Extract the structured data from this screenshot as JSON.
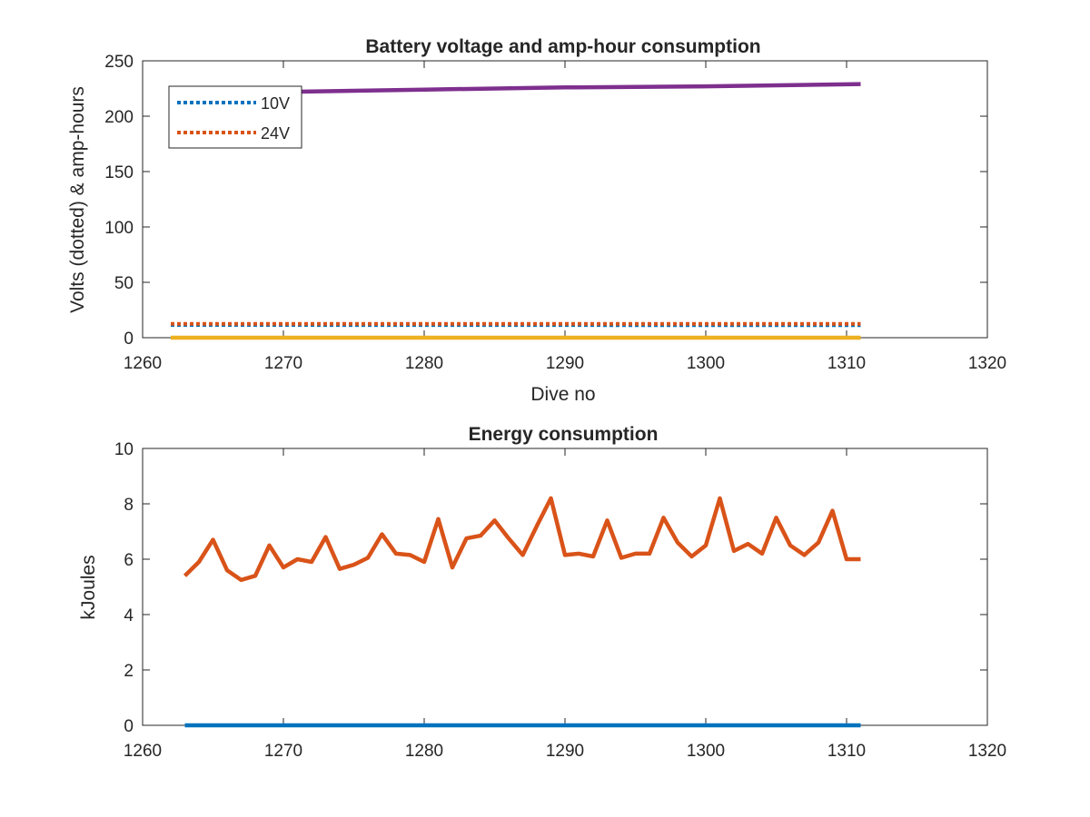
{
  "chart_data": [
    {
      "type": "line",
      "title": "Battery voltage and amp-hour consumption",
      "xlabel": "Dive no",
      "ylabel": "Volts (dotted) & amp-hours",
      "xlim": [
        1260,
        1320
      ],
      "ylim": [
        0,
        250
      ],
      "xticks": [
        "1260",
        "1270",
        "1280",
        "1290",
        "1300",
        "1310",
        "1320"
      ],
      "yticks": [
        "0",
        "50",
        "100",
        "150",
        "200",
        "250"
      ],
      "legend_placement": "top-left",
      "legend": [
        "10V",
        "24V"
      ],
      "series": [
        {
          "name": "10V",
          "style": "dotted",
          "color": "#0072BD",
          "x": [
            1262,
            1311
          ],
          "y": [
            11.5,
            11.2
          ]
        },
        {
          "name": "24V",
          "style": "dotted",
          "color": "#D95319",
          "x": [
            1262,
            1311
          ],
          "y": [
            12.5,
            12.5
          ]
        },
        {
          "style": "solid",
          "color": "#7E2F8E",
          "x": [
            1262,
            1270,
            1280,
            1290,
            1300,
            1311
          ],
          "y": [
            220,
            222,
            224,
            226,
            227,
            229
          ]
        },
        {
          "style": "solid",
          "color": "#EDB120",
          "x": [
            1262,
            1311
          ],
          "y": [
            0,
            0
          ]
        }
      ]
    },
    {
      "type": "line",
      "title": "Energy consumption",
      "xlabel": "",
      "ylabel": "kJoules",
      "xlim": [
        1260,
        1320
      ],
      "ylim": [
        0,
        10
      ],
      "xticks": [
        "1260",
        "1270",
        "1280",
        "1290",
        "1300",
        "1310",
        "1320"
      ],
      "yticks": [
        "0",
        "2",
        "4",
        "6",
        "8",
        "10"
      ],
      "series": [
        {
          "style": "solid",
          "color": "#D95319",
          "x": [
            1263,
            1264,
            1265,
            1266,
            1267,
            1268,
            1269,
            1270,
            1271,
            1272,
            1273,
            1274,
            1275,
            1276,
            1277,
            1278,
            1279,
            1280,
            1281,
            1282,
            1283,
            1284,
            1285,
            1286,
            1287,
            1288,
            1289,
            1290,
            1291,
            1292,
            1293,
            1294,
            1295,
            1296,
            1297,
            1298,
            1299,
            1300,
            1301,
            1302,
            1303,
            1304,
            1305,
            1306,
            1307,
            1308,
            1309,
            1310,
            1311
          ],
          "y": [
            5.4,
            5.9,
            6.7,
            5.6,
            5.25,
            5.4,
            6.5,
            5.7,
            6.0,
            5.9,
            6.8,
            5.65,
            5.8,
            6.05,
            6.9,
            6.2,
            6.15,
            5.9,
            7.45,
            5.7,
            6.75,
            6.85,
            7.4,
            6.75,
            6.15,
            7.2,
            8.2,
            6.15,
            6.2,
            6.1,
            7.4,
            6.05,
            6.2,
            6.2,
            7.5,
            6.6,
            6.1,
            6.5,
            8.2,
            6.3,
            6.55,
            6.2,
            7.5,
            6.5,
            6.15,
            6.6,
            7.75,
            6.0,
            6.0
          ]
        },
        {
          "style": "solid",
          "color": "#0072BD",
          "x": [
            1263,
            1311
          ],
          "y": [
            0,
            0
          ]
        }
      ]
    }
  ]
}
